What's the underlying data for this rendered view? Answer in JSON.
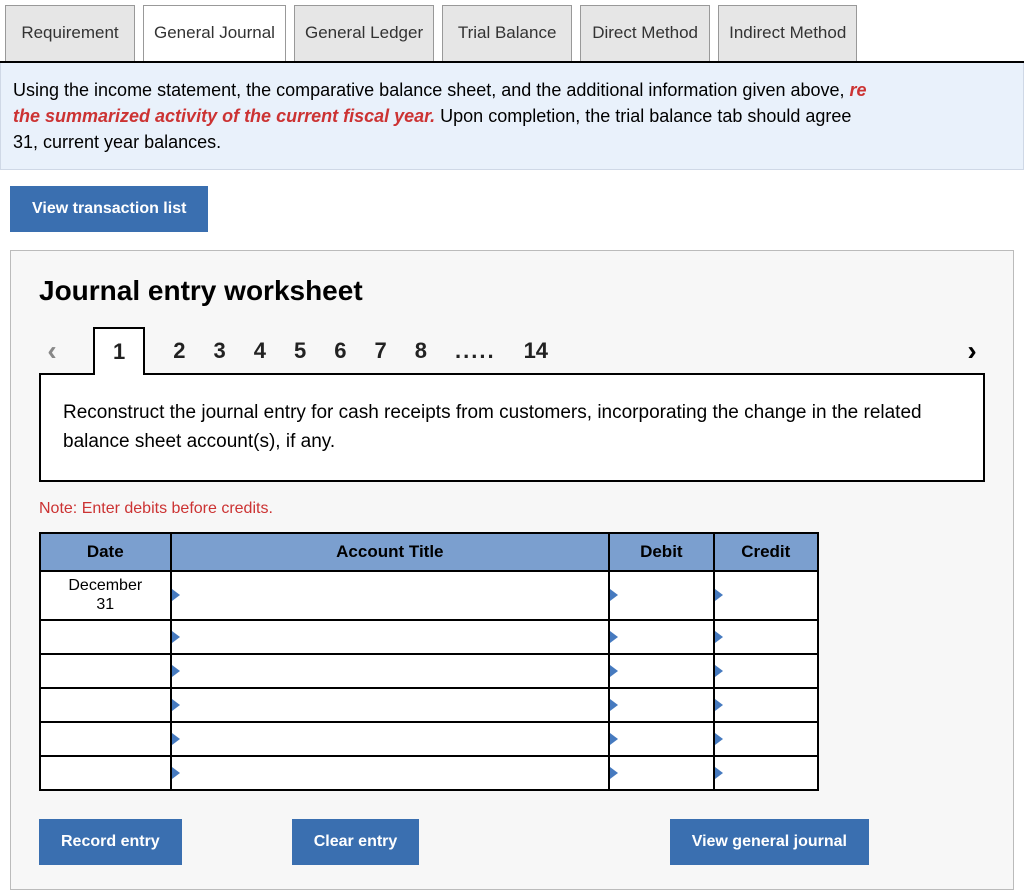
{
  "topTabs": {
    "items": [
      {
        "label": "Requirement"
      },
      {
        "label": "General Journal"
      },
      {
        "label": "General Ledger"
      },
      {
        "label": "Trial Balance"
      },
      {
        "label": "Direct Method"
      },
      {
        "label": "Indirect Method"
      }
    ],
    "activeIndex": 1
  },
  "instructions": {
    "pre": "Using the income statement, the comparative balance sheet, and the additional information given above, ",
    "emph_truncated_start": "re",
    "emph_line2": "the summarized activity of the current fiscal year.",
    "post": "  Upon completion, the trial balance tab should agree",
    "line3": "31, current year balances."
  },
  "buttons": {
    "viewList": "View transaction list",
    "record": "Record entry",
    "clear": "Clear entry",
    "viewJournal": "View general journal"
  },
  "worksheet": {
    "title": "Journal entry worksheet",
    "steps": [
      "1",
      "2",
      "3",
      "4",
      "5",
      "6",
      "7",
      "8"
    ],
    "ellipsis": ".....",
    "lastStep": "14",
    "activeStep": 0,
    "prompt": "Reconstruct the journal entry for cash receipts from customers, incorporating the change in the related balance sheet account(s), if any.",
    "note": "Note: Enter debits before credits.",
    "table": {
      "headers": {
        "date": "Date",
        "title": "Account Title",
        "debit": "Debit",
        "credit": "Credit"
      },
      "dateValue": "December 31",
      "rowCount": 6,
      "headerBg": "#7b9fcf",
      "triColor": "#467abf"
    }
  },
  "colors": {
    "buttonBlue": "#3a6fb0",
    "instructionBg": "#e9f1fb",
    "panelBg": "#f7f7f7",
    "noteRed": "#c33"
  }
}
